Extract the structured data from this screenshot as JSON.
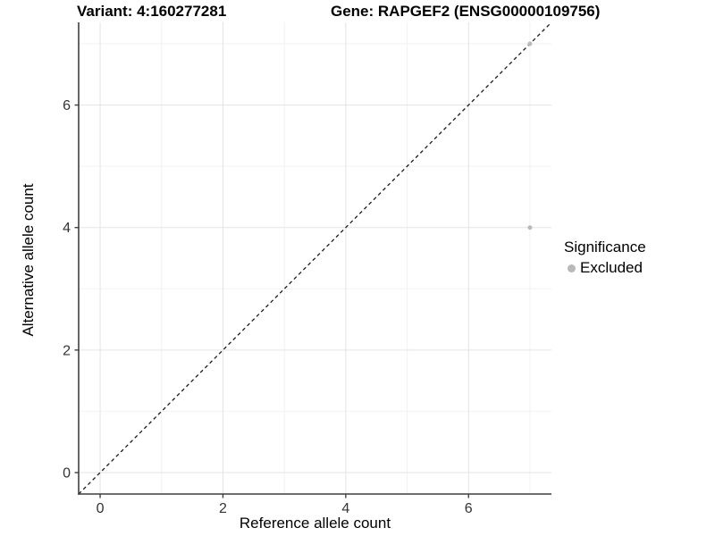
{
  "titles": {
    "variant": "Variant: 4:160277281",
    "gene": "Gene: RAPGEF2 (ENSG00000109756)"
  },
  "legend": {
    "title": "Significance",
    "items": [
      {
        "label": "Excluded",
        "color": "#b9b9b9"
      }
    ]
  },
  "chart_data": {
    "type": "scatter",
    "title": "Variant: 4:160277281 — Gene: RAPGEF2 (ENSG00000109756)",
    "xlabel": "Reference allele count",
    "ylabel": "Alternative allele count",
    "xlim": [
      -0.35,
      7.35
    ],
    "ylim": [
      -0.35,
      7.35
    ],
    "x_ticks": [
      0,
      2,
      4,
      6
    ],
    "y_ticks": [
      0,
      2,
      4,
      6
    ],
    "x_minor_ticks": [
      1,
      3,
      5,
      7
    ],
    "y_minor_ticks": [
      1,
      3,
      5,
      7
    ],
    "grid": true,
    "legend_position": "right",
    "series": [
      {
        "name": "Excluded",
        "color": "#b9b9b9",
        "points": [
          {
            "x": 7,
            "y": 4
          },
          {
            "x": 7,
            "y": 7
          }
        ]
      }
    ],
    "identity_line": {
      "style": "dashed",
      "color": "#1a1a1a",
      "from": {
        "x": -0.35,
        "y": -0.35
      },
      "to": {
        "x": 7.35,
        "y": 7.35
      }
    },
    "colors": {
      "grid_major": "#e3e3e3",
      "grid_minor": "#f2f2f2",
      "axis_line": "#3f3f3f",
      "tick_label": "#333333"
    }
  }
}
